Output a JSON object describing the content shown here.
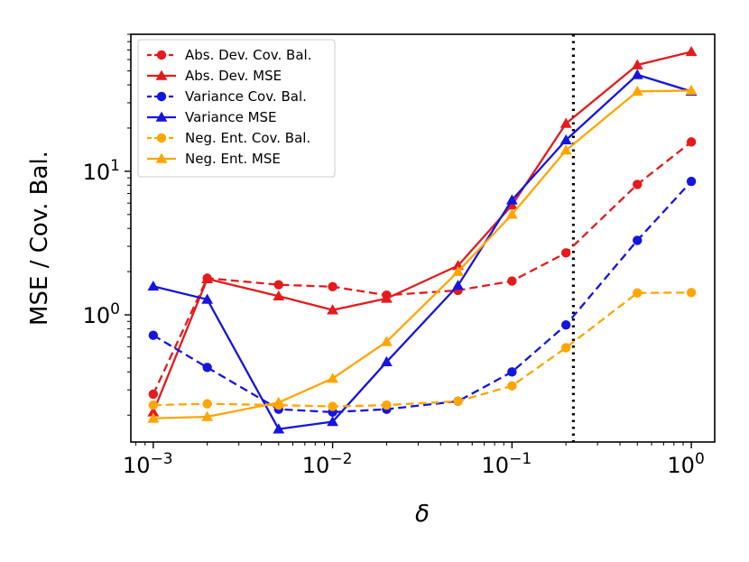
{
  "chart_data": {
    "type": "line",
    "title": "",
    "xlabel": "δ",
    "ylabel": "MSE / Cov. Bal.",
    "xscale": "log",
    "yscale": "log",
    "xlim": [
      0.00075,
      1.35
    ],
    "ylim": [
      0.13,
      90
    ],
    "x": [
      0.001,
      0.002,
      0.005,
      0.01,
      0.02,
      0.05,
      0.1,
      0.2,
      0.5,
      1.0
    ],
    "x_ticks": [
      {
        "value": 0.001,
        "base": "10",
        "exp": "−3"
      },
      {
        "value": 0.01,
        "base": "10",
        "exp": "−2"
      },
      {
        "value": 0.1,
        "base": "10",
        "exp": "−1"
      },
      {
        "value": 1,
        "base": "10",
        "exp": "0"
      }
    ],
    "y_ticks": [
      {
        "value": 1,
        "base": "10",
        "exp": "0"
      },
      {
        "value": 10,
        "base": "10",
        "exp": "1"
      }
    ],
    "vline": {
      "x": 0.22,
      "style": "dotted",
      "color": "#000000"
    },
    "legend_position": "upper-left",
    "series": [
      {
        "name": "Abs. Dev. Cov. Bal.",
        "color": "#e41a1c",
        "dash": "dashed",
        "marker": "circle",
        "values": [
          0.28,
          1.8,
          1.62,
          1.57,
          1.37,
          1.48,
          1.72,
          2.7,
          8.1,
          16.0
        ]
      },
      {
        "name": "Abs. Dev. MSE",
        "color": "#e41a1c",
        "dash": "solid",
        "marker": "triangle",
        "values": [
          0.21,
          1.78,
          1.35,
          1.08,
          1.3,
          2.2,
          5.8,
          21.5,
          55.0,
          68.0
        ]
      },
      {
        "name": "Variance Cov. Bal.",
        "color": "#1515e0",
        "dash": "dashed",
        "marker": "circle",
        "values": [
          0.72,
          0.43,
          0.22,
          0.21,
          0.22,
          0.25,
          0.4,
          0.85,
          3.3,
          8.5
        ]
      },
      {
        "name": "Variance MSE",
        "color": "#1515e0",
        "dash": "solid",
        "marker": "triangle",
        "values": [
          1.58,
          1.28,
          0.16,
          0.18,
          0.47,
          1.6,
          6.3,
          16.5,
          47.0,
          36.0
        ]
      },
      {
        "name": "Neg. Ent. Cov. Bal.",
        "color": "#ffa500",
        "dash": "dashed",
        "marker": "circle",
        "values": [
          0.235,
          0.24,
          0.235,
          0.23,
          0.235,
          0.25,
          0.32,
          0.59,
          1.42,
          1.43
        ]
      },
      {
        "name": "Neg. Ent. MSE",
        "color": "#ffa500",
        "dash": "solid",
        "marker": "triangle",
        "values": [
          0.19,
          0.195,
          0.245,
          0.36,
          0.65,
          2.0,
          5.0,
          14.0,
          36.0,
          36.5
        ]
      }
    ]
  }
}
